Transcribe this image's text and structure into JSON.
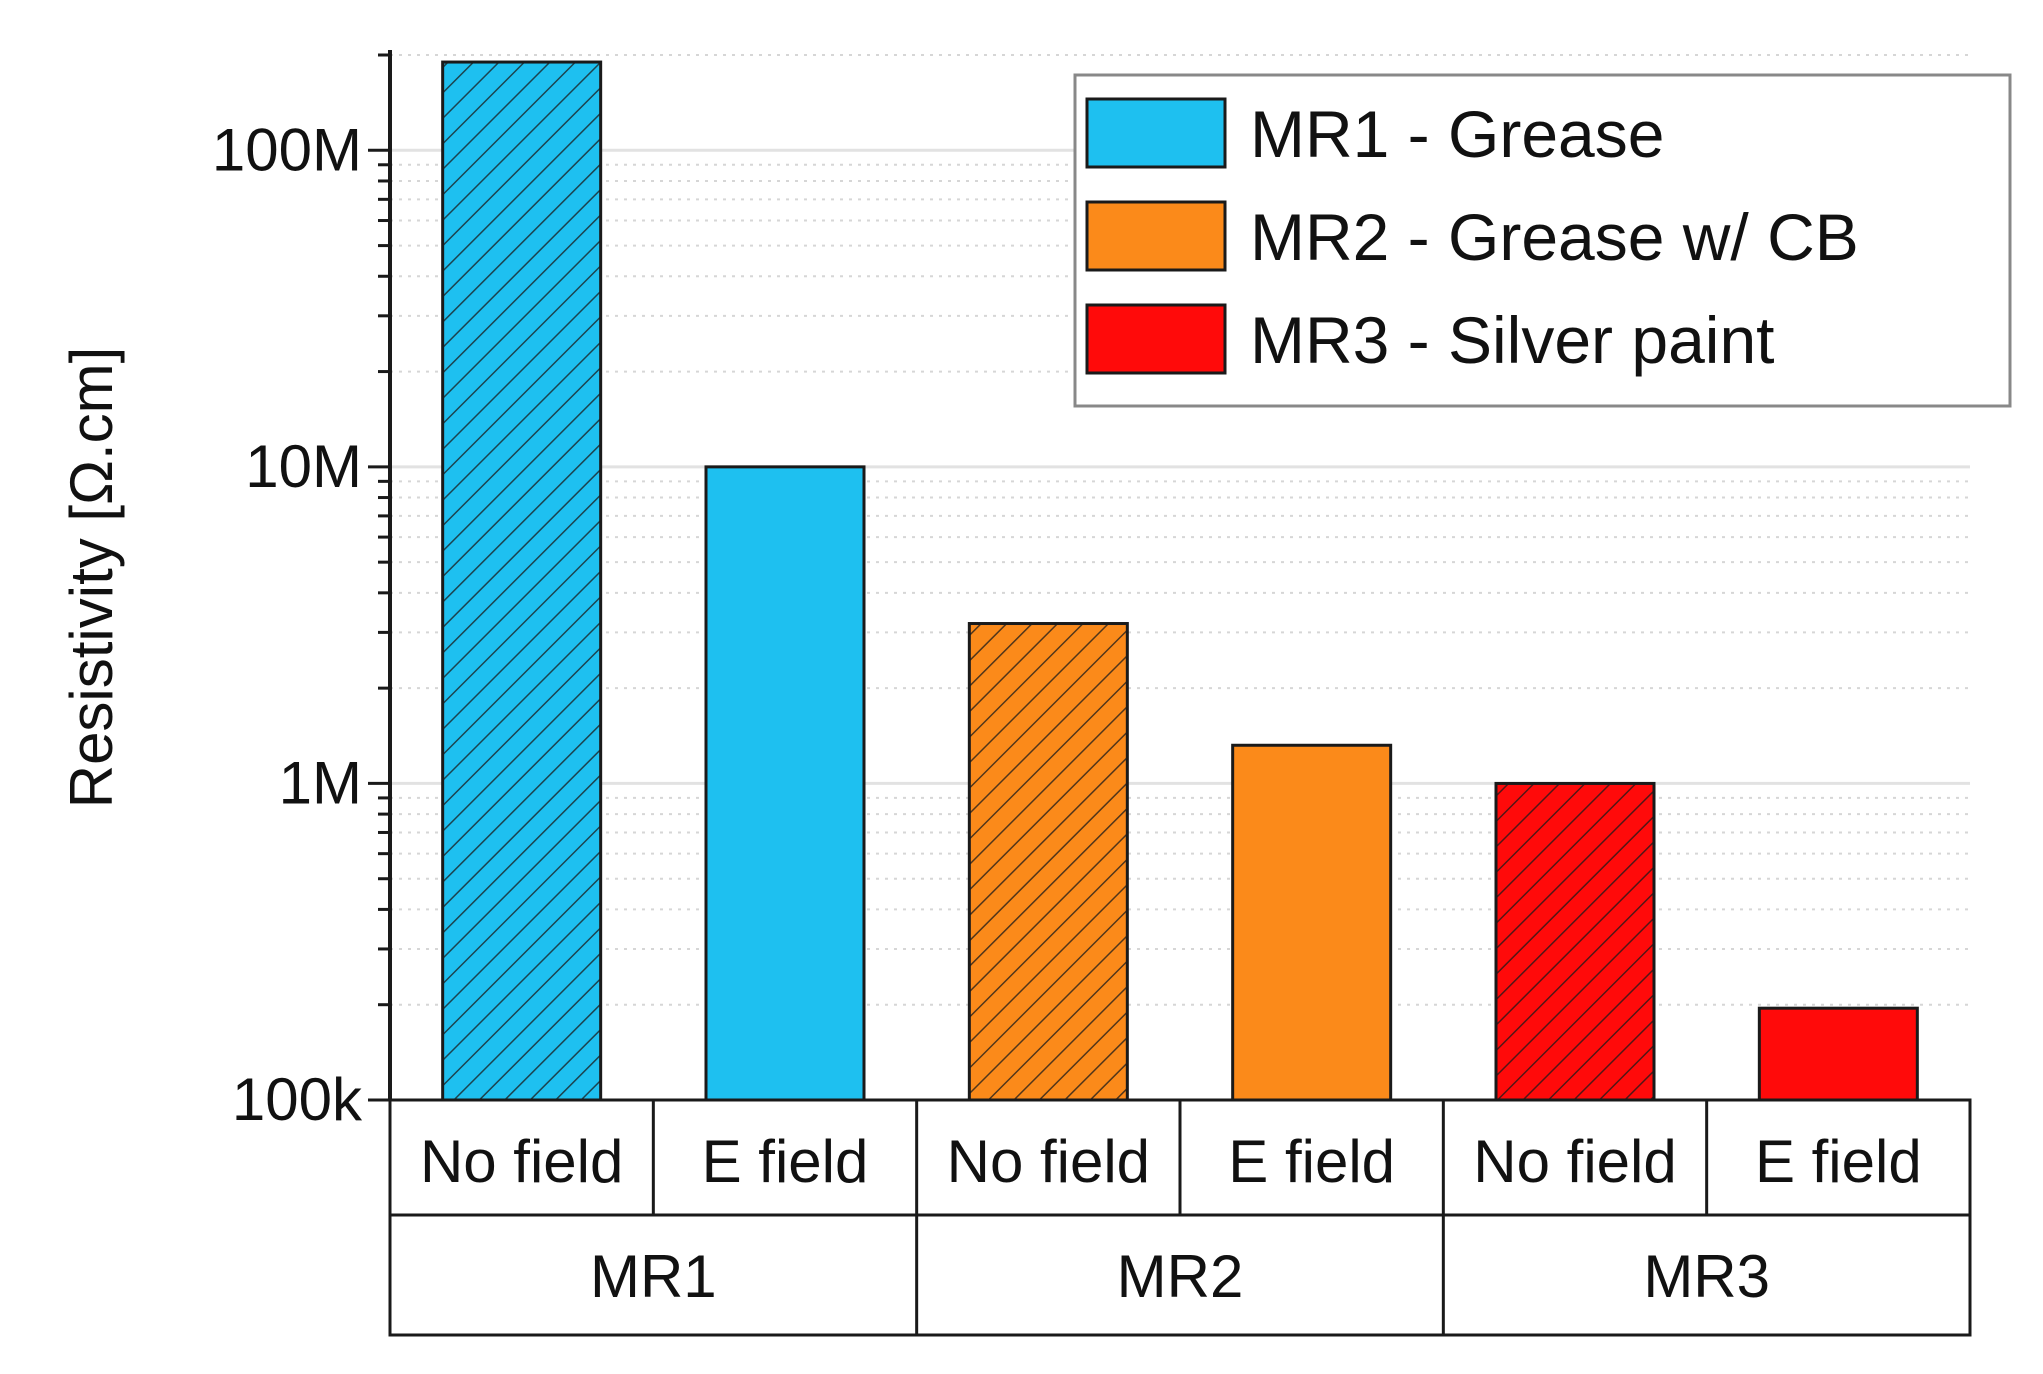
{
  "chart_data": {
    "type": "bar",
    "title": "",
    "xlabel": "",
    "ylabel": "Resistivity [Ω.cm]",
    "yscale": "log",
    "ylim": [
      100000,
      200000000
    ],
    "yticks": [
      {
        "value": 100000,
        "label": "100k"
      },
      {
        "value": 1000000,
        "label": "1M"
      },
      {
        "value": 10000000,
        "label": "10M"
      },
      {
        "value": 100000000,
        "label": "100M"
      }
    ],
    "grid": true,
    "legend_position": "top-right",
    "groups": [
      {
        "label": "MR1",
        "categories": [
          "No field",
          "E field"
        ]
      },
      {
        "label": "MR2",
        "categories": [
          "No field",
          "E field"
        ]
      },
      {
        "label": "MR3",
        "categories": [
          "No field",
          "E field"
        ]
      }
    ],
    "series": [
      {
        "name": "MR1 - Grease",
        "color": "#1ec0f0",
        "values": [
          190000000,
          10000000
        ]
      },
      {
        "name": "MR2 - Grease w/ CB",
        "color": "#fb8a1a",
        "values": [
          3200000,
          1320000
        ]
      },
      {
        "name": "MR3 - Silver paint",
        "color": "#ff0a0a",
        "values": [
          1000000,
          195000
        ]
      }
    ],
    "hatched_category": "No field"
  }
}
